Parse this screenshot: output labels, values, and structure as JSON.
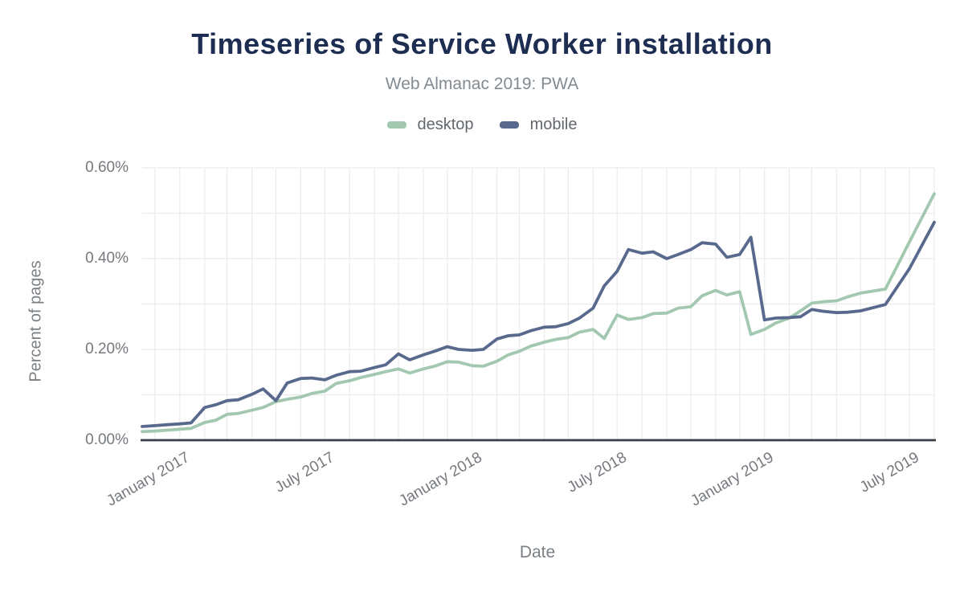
{
  "chart_data": {
    "type": "line",
    "title": "Timeseries of Service Worker installation",
    "subtitle": "Web Almanac 2019: PWA",
    "xlabel": "Date",
    "ylabel": "Percent of pages",
    "legend_position": "top-center",
    "grid": {
      "vertical": "monthly",
      "horizontal_step_percent": 0.1
    },
    "x_range": [
      "2016-11-15",
      "2019-08-01"
    ],
    "ylim": [
      0,
      0.6
    ],
    "y_ticks": [
      {
        "value": 0.0,
        "label": "0.00%"
      },
      {
        "value": 0.2,
        "label": "0.20%"
      },
      {
        "value": 0.4,
        "label": "0.40%"
      },
      {
        "value": 0.6,
        "label": "0.60%"
      }
    ],
    "x_ticks": [
      {
        "date": "2017-01-01",
        "label": "January 2017"
      },
      {
        "date": "2017-07-01",
        "label": "July 2017"
      },
      {
        "date": "2018-01-01",
        "label": "January 2018"
      },
      {
        "date": "2018-07-01",
        "label": "July 2018"
      },
      {
        "date": "2019-01-01",
        "label": "January 2019"
      },
      {
        "date": "2019-07-01",
        "label": "July 2019"
      }
    ],
    "x": [
      "2016-11-15",
      "2016-12-01",
      "2016-12-15",
      "2017-01-01",
      "2017-01-15",
      "2017-02-01",
      "2017-02-15",
      "2017-03-01",
      "2017-03-15",
      "2017-04-01",
      "2017-04-15",
      "2017-05-01",
      "2017-05-15",
      "2017-06-01",
      "2017-06-15",
      "2017-07-01",
      "2017-07-15",
      "2017-08-01",
      "2017-08-15",
      "2017-09-01",
      "2017-09-15",
      "2017-10-01",
      "2017-10-15",
      "2017-11-01",
      "2017-11-15",
      "2017-12-01",
      "2017-12-15",
      "2018-01-01",
      "2018-01-15",
      "2018-02-01",
      "2018-02-15",
      "2018-03-01",
      "2018-03-15",
      "2018-04-01",
      "2018-04-15",
      "2018-05-01",
      "2018-05-15",
      "2018-06-01",
      "2018-06-15",
      "2018-07-01",
      "2018-07-15",
      "2018-08-01",
      "2018-08-15",
      "2018-09-01",
      "2018-09-15",
      "2018-10-01",
      "2018-10-15",
      "2018-11-01",
      "2018-11-15",
      "2018-12-01",
      "2018-12-15",
      "2019-01-01",
      "2019-01-15",
      "2019-02-01",
      "2019-02-15",
      "2019-03-01",
      "2019-03-15",
      "2019-04-01",
      "2019-04-15",
      "2019-05-01",
      "2019-06-01",
      "2019-07-01",
      "2019-08-01"
    ],
    "series": [
      {
        "name": "desktop",
        "color": "#a2c8b0",
        "values": [
          0.019,
          0.02,
          0.022,
          0.024,
          0.026,
          0.039,
          0.044,
          0.057,
          0.059,
          0.066,
          0.072,
          0.085,
          0.09,
          0.095,
          0.103,
          0.108,
          0.125,
          0.131,
          0.138,
          0.145,
          0.151,
          0.157,
          0.148,
          0.157,
          0.163,
          0.173,
          0.172,
          0.164,
          0.163,
          0.174,
          0.188,
          0.196,
          0.207,
          0.216,
          0.222,
          0.226,
          0.238,
          0.244,
          0.224,
          0.276,
          0.266,
          0.27,
          0.279,
          0.28,
          0.291,
          0.294,
          0.318,
          0.33,
          0.32,
          0.327,
          0.233,
          0.244,
          0.258,
          0.269,
          0.285,
          0.302,
          0.305,
          0.307,
          0.316,
          0.324,
          0.333,
          0.437,
          0.543
        ]
      },
      {
        "name": "mobile",
        "color": "#59698d",
        "values": [
          0.03,
          0.032,
          0.034,
          0.036,
          0.038,
          0.072,
          0.078,
          0.087,
          0.089,
          0.101,
          0.113,
          0.087,
          0.126,
          0.136,
          0.137,
          0.133,
          0.143,
          0.151,
          0.152,
          0.16,
          0.166,
          0.19,
          0.177,
          0.188,
          0.196,
          0.206,
          0.2,
          0.198,
          0.2,
          0.223,
          0.23,
          0.232,
          0.241,
          0.249,
          0.25,
          0.257,
          0.269,
          0.291,
          0.34,
          0.372,
          0.42,
          0.412,
          0.415,
          0.4,
          0.409,
          0.42,
          0.435,
          0.432,
          0.403,
          0.409,
          0.447,
          0.265,
          0.269,
          0.27,
          0.272,
          0.288,
          0.284,
          0.281,
          0.282,
          0.285,
          0.299,
          0.378,
          0.48
        ]
      }
    ],
    "colors": {
      "title": "#1e2e52",
      "subtitle": "#828a92",
      "tick_label": "#75797e",
      "axis_title": "#7a7f84",
      "axis_line": "#3a3e45",
      "gridline": "#ebebeb",
      "background": "#ffffff"
    }
  }
}
